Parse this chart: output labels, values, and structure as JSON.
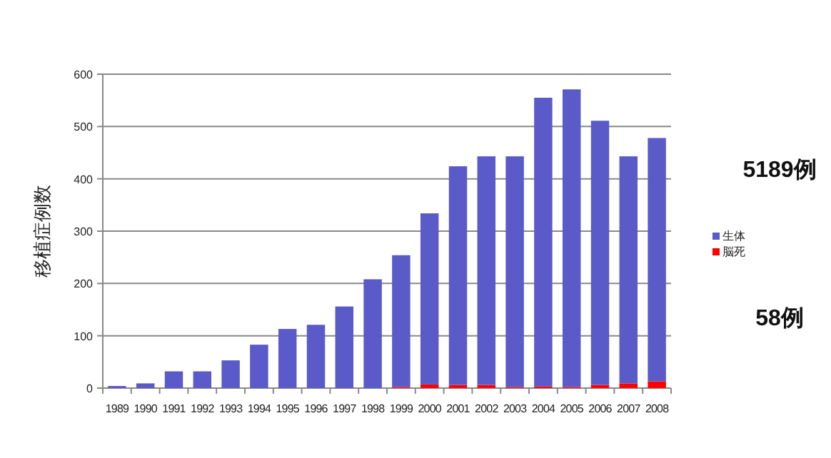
{
  "chart_data": {
    "type": "bar",
    "stacked": true,
    "ylabel": "移植症例数",
    "categories": [
      "1989",
      "1990",
      "1991",
      "1992",
      "1993",
      "1994",
      "1995",
      "1996",
      "1997",
      "1998",
      "1999",
      "2000",
      "2001",
      "2002",
      "2003",
      "2004",
      "2005",
      "2006",
      "2007",
      "2008"
    ],
    "series": [
      {
        "name": "脳死",
        "color": "#ff0000",
        "values": [
          0,
          0,
          0,
          0,
          0,
          0,
          0,
          0,
          0,
          0,
          2,
          7,
          6,
          6,
          2,
          3,
          2,
          6,
          9,
          13
        ]
      },
      {
        "name": "生体",
        "color": "#5a5ac8",
        "values": [
          4,
          9,
          32,
          32,
          53,
          83,
          113,
          121,
          156,
          208,
          252,
          327,
          418,
          437,
          441,
          552,
          569,
          505,
          434,
          465
        ]
      }
    ],
    "ylim": [
      0,
      600
    ],
    "yticks": [
      0,
      100,
      200,
      300,
      400,
      500,
      600
    ],
    "grid": "y",
    "legend": "right",
    "annotations": [
      "5189例",
      "58例"
    ]
  }
}
